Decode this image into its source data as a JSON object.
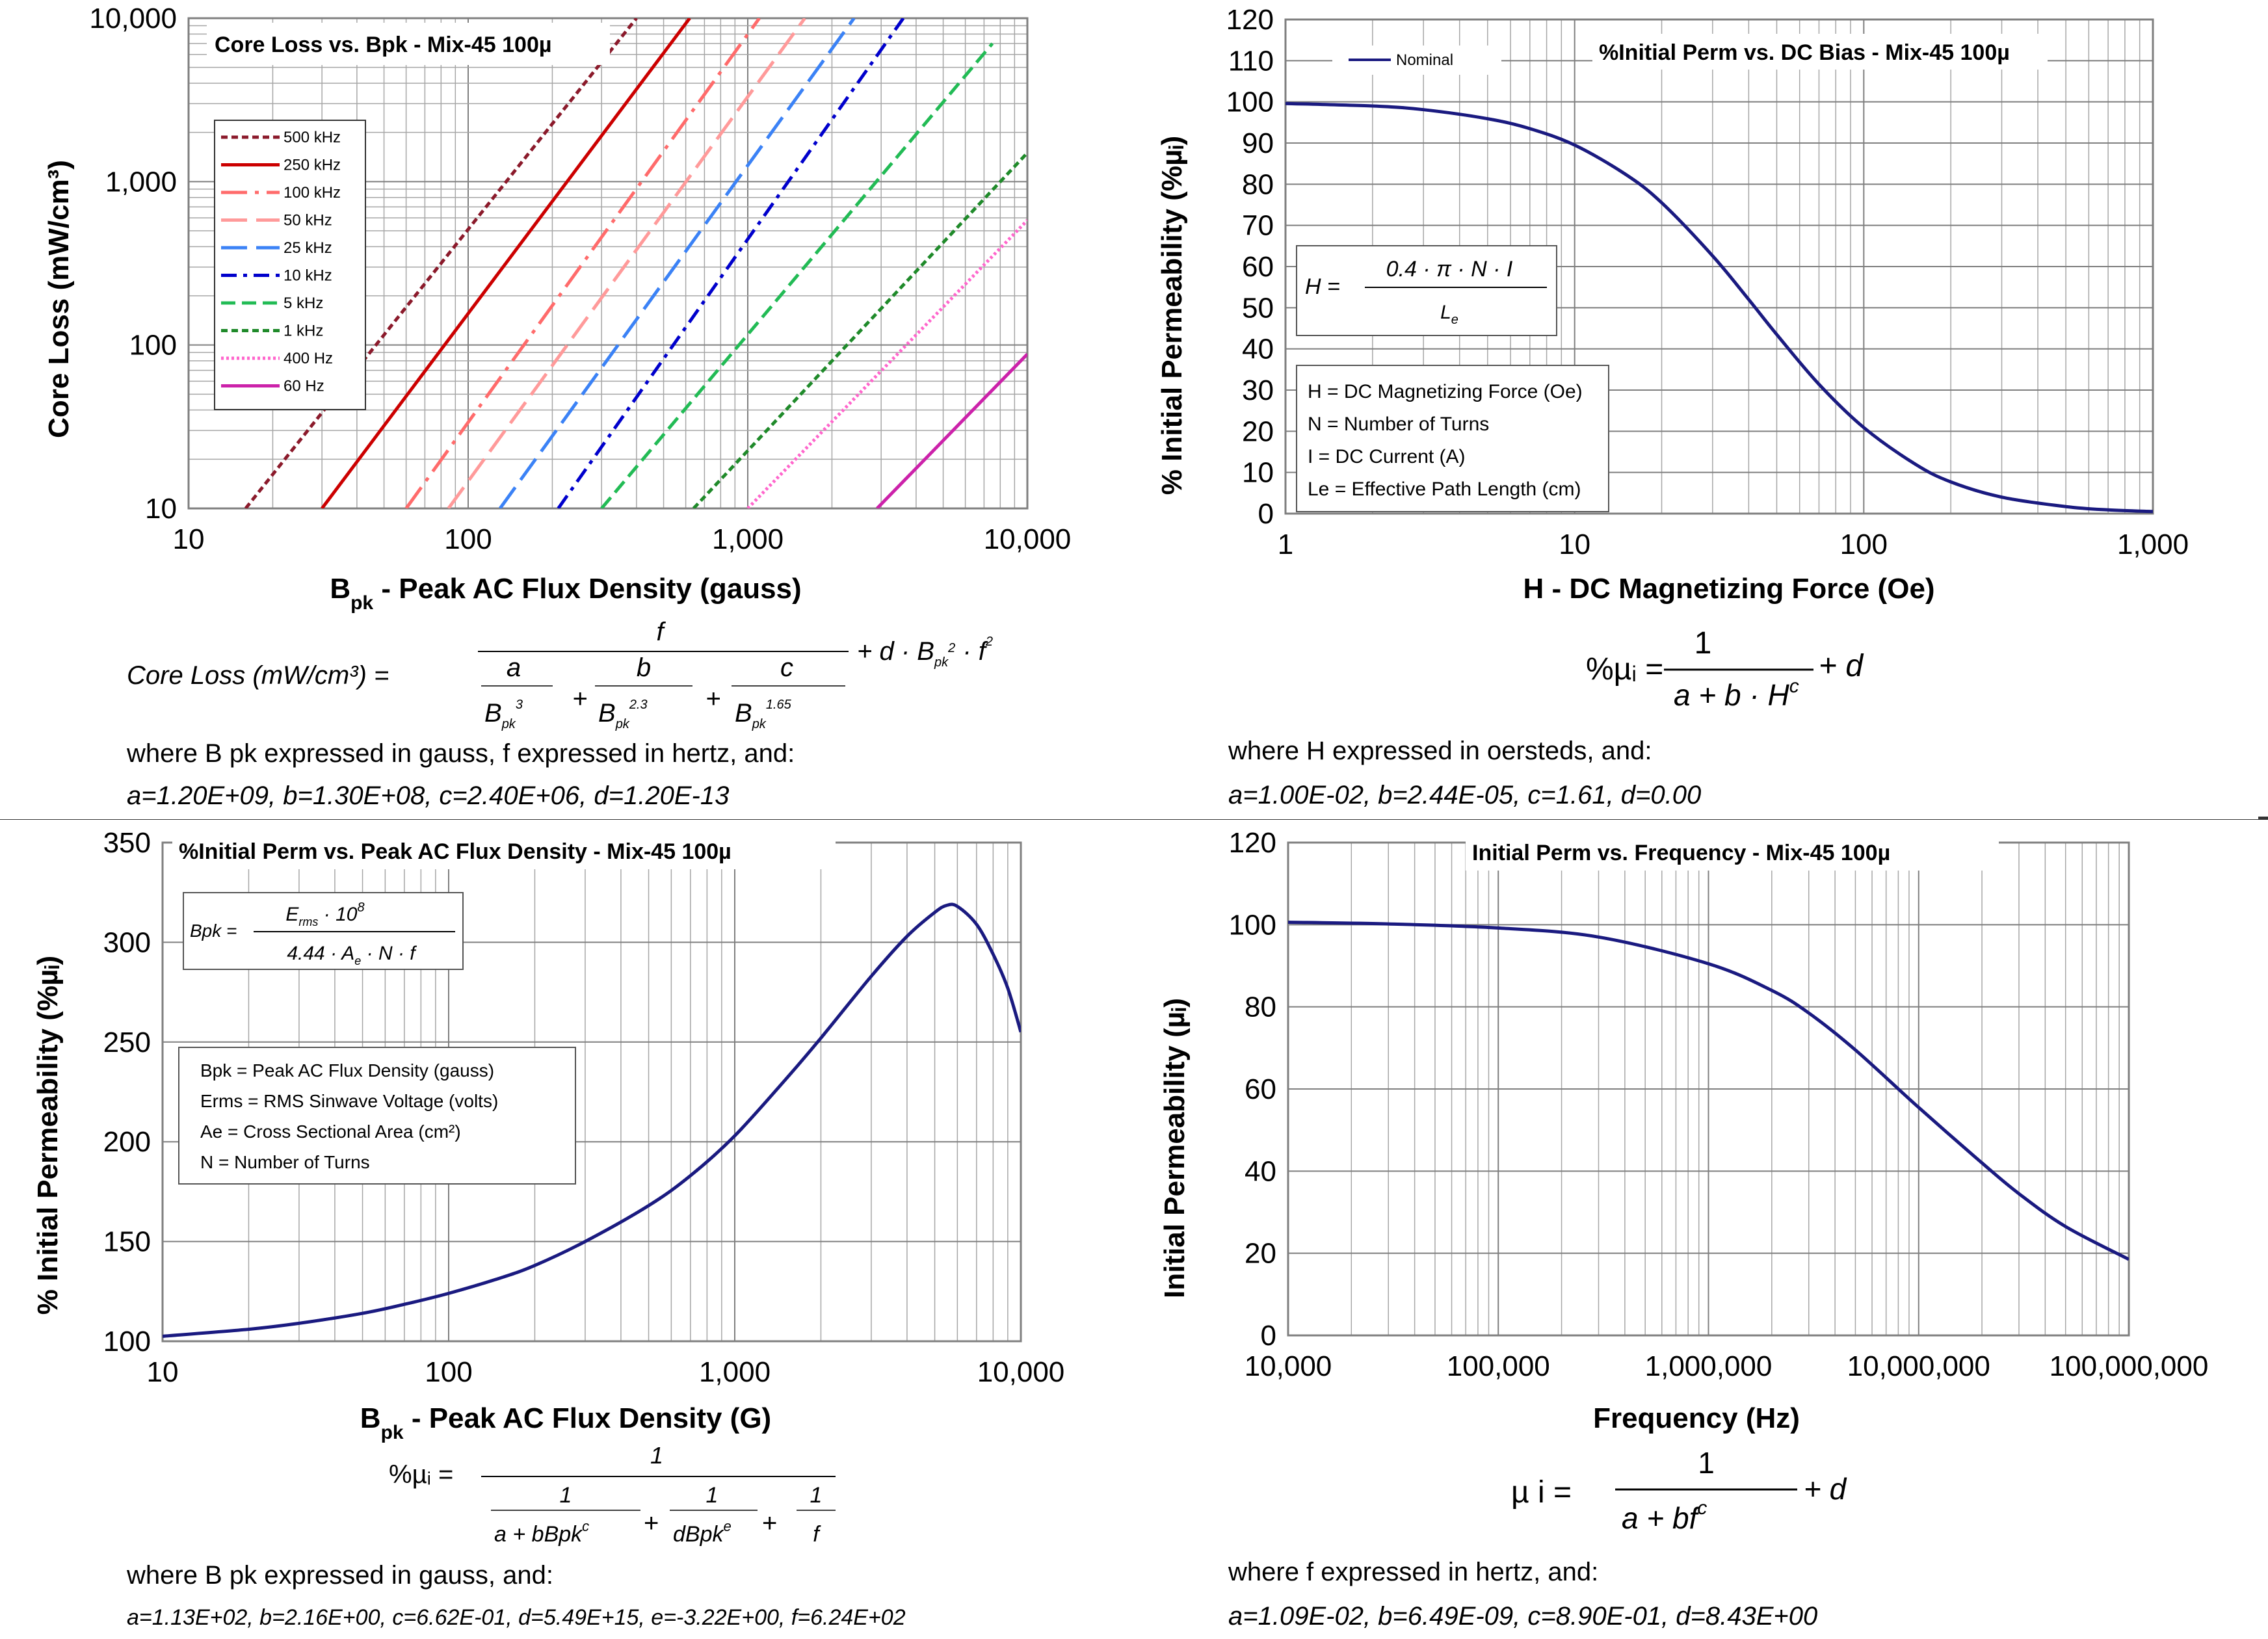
{
  "chart_data": [
    {
      "type": "line",
      "id": "core_loss",
      "title": "Core Loss vs. Bpk - Mix-45  100µ",
      "xlabel": "B",
      "xlabel_sub": "pk",
      "xlabel_rest": " - Peak AC Flux Density (gauss)",
      "ylabel": "Core Loss (mW/cm³)",
      "xscale": "log",
      "yscale": "log",
      "xlim": [
        10,
        10000
      ],
      "ylim": [
        10,
        10000
      ],
      "xticks": [
        10,
        100,
        1000,
        10000
      ],
      "xtick_labels": [
        "10",
        "100",
        "1,000",
        "10,000"
      ],
      "yticks": [
        10,
        100,
        1000,
        10000
      ],
      "ytick_labels": [
        "10",
        "100",
        "1,000",
        "10,000"
      ],
      "grid": true,
      "legend_position": "top-left",
      "series": [
        {
          "name": "500 kHz",
          "color": "#8b1a2b",
          "dash": "10,6",
          "x": [
            16,
            400
          ],
          "y": [
            10,
            10000
          ]
        },
        {
          "name": "250 kHz",
          "color": "#cc0000",
          "dash": "",
          "x": [
            30,
            620
          ],
          "y": [
            10,
            10000
          ]
        },
        {
          "name": "100 kHz",
          "color": "#ff6b6b",
          "dash": "40,12,6,12",
          "x": [
            60,
            1100
          ],
          "y": [
            10,
            10000
          ]
        },
        {
          "name": "50 kHz",
          "color": "#ff9a9a",
          "dash": "40,14",
          "x": [
            85,
            1600
          ],
          "y": [
            10,
            10000
          ]
        },
        {
          "name": "25 kHz",
          "color": "#3b82f6",
          "dash": "40,14",
          "x": [
            130,
            2400
          ],
          "y": [
            10,
            10000
          ]
        },
        {
          "name": "10 kHz",
          "color": "#0000cc",
          "dash": "24,10,6,10",
          "x": [
            210,
            3600
          ],
          "y": [
            10,
            10000
          ]
        },
        {
          "name": "5 kHz",
          "color": "#22bb55",
          "dash": "22,10",
          "x": [
            300,
            7500
          ],
          "y": [
            10,
            7000
          ]
        },
        {
          "name": "1 kHz",
          "color": "#1f8a2a",
          "dash": "10,6",
          "x": [
            640,
            10000
          ],
          "y": [
            10,
            1500
          ]
        },
        {
          "name": "400 Hz",
          "color": "#ff66cc",
          "dash": "4,4",
          "x": [
            1000,
            10000
          ],
          "y": [
            10,
            580
          ]
        },
        {
          "name": "60 Hz",
          "color": "#cc22aa",
          "dash": "",
          "x": [
            2900,
            10000
          ],
          "y": [
            10,
            88
          ]
        }
      ]
    },
    {
      "type": "line",
      "id": "perm_vs_dc_bias",
      "title": "%Initial Perm vs. DC Bias - Mix-45  100µ",
      "xlabel": "H - DC Magnetizing Force (Oe)",
      "ylabel": "% Initial Permeability (%µᵢ)",
      "xscale": "log",
      "yscale": "linear",
      "xlim": [
        1,
        1000
      ],
      "ylim": [
        0,
        120
      ],
      "xticks": [
        1,
        10,
        100,
        1000
      ],
      "xtick_labels": [
        "1",
        "10",
        "100",
        "1,000"
      ],
      "yticks": [
        0,
        10,
        20,
        30,
        40,
        50,
        60,
        70,
        80,
        90,
        100,
        110,
        120
      ],
      "grid": true,
      "legend_position": "top-left",
      "series": [
        {
          "name": "Nominal",
          "color": "#1a1a80",
          "x": [
            1,
            2,
            3,
            5,
            7,
            10,
            15,
            20,
            30,
            40,
            50,
            70,
            100,
            150,
            200,
            300,
            500,
            700,
            1000
          ],
          "y": [
            99.6,
            99.0,
            98.1,
            95.9,
            93.5,
            89.5,
            82.4,
            75.5,
            62.6,
            52.0,
            43.5,
            31.4,
            20.9,
            12.1,
            7.7,
            4.0,
            1.7,
            0.9,
            0.5
          ]
        }
      ]
    },
    {
      "type": "line",
      "id": "perm_vs_bpk",
      "title": "%Initial Perm vs. Peak AC Flux Density - Mix-45  100µ",
      "xlabel": "B",
      "xlabel_sub": "pk",
      "xlabel_rest": " - Peak AC Flux Density (G)",
      "ylabel": "% Initial Permeability (%µᵢ)",
      "xscale": "log",
      "yscale": "linear",
      "xlim": [
        10,
        10000
      ],
      "ylim": [
        100,
        350
      ],
      "xticks": [
        10,
        100,
        1000,
        10000
      ],
      "xtick_labels": [
        "10",
        "100",
        "1,000",
        "10,000"
      ],
      "yticks": [
        100,
        150,
        200,
        250,
        300,
        350
      ],
      "grid": true,
      "series": [
        {
          "name": "",
          "color": "#1a1a80",
          "x": [
            10,
            20,
            30,
            50,
            70,
            100,
            150,
            200,
            300,
            500,
            700,
            1000,
            1500,
            2000,
            3000,
            4000,
            5000,
            5500,
            6000,
            7000,
            8000,
            9000,
            10000
          ],
          "y": [
            102.5,
            106,
            109,
            114,
            118.5,
            124,
            131.5,
            138,
            150,
            168,
            183,
            203,
            231,
            252,
            283,
            303,
            315,
            318.5,
            318,
            309,
            294,
            277,
            255
          ]
        }
      ]
    },
    {
      "type": "line",
      "id": "perm_vs_freq",
      "title": "Initial Perm vs. Frequency - Mix-45  100µ",
      "xlabel": "Frequency (Hz)",
      "ylabel": "Initial Permeability (µᵢ)",
      "xscale": "log",
      "yscale": "linear",
      "xlim": [
        10000,
        100000000
      ],
      "ylim": [
        0,
        120
      ],
      "xticks": [
        10000,
        100000,
        1000000,
        10000000,
        100000000
      ],
      "xtick_labels": [
        "10,000",
        "100,000",
        "1,000,000",
        "10,000,000",
        "100,000,000"
      ],
      "yticks": [
        0,
        20,
        40,
        60,
        80,
        100,
        120
      ],
      "grid": true,
      "series": [
        {
          "name": "",
          "color": "#1a1a80",
          "x": [
            10000,
            30000,
            100000,
            300000,
            1000000,
            2000000,
            3000000,
            5000000,
            10000000,
            20000000,
            30000000,
            50000000,
            100000000
          ],
          "y": [
            100.6,
            100.2,
            99.2,
            97,
            90.5,
            84,
            78.5,
            69.5,
            55.5,
            42,
            34.5,
            26.5,
            18.5
          ]
        }
      ]
    }
  ],
  "panels": {
    "core_loss": {
      "formula_lhs": "Core Loss (mW/cm³)  =",
      "formula_num": "f",
      "frac_a": "a",
      "frac_b": "b",
      "frac_c": "c",
      "den_a": "B",
      "den_a_sub": "pk",
      "den_a_exp": "3",
      "den_b": "B",
      "den_b_sub": "pk",
      "den_b_exp": "2.3",
      "den_c": "B",
      "den_c_sub": "pk",
      "den_c_exp": "1.65",
      "formula_tail": "+ d · B",
      "formula_tail_sub": "pk",
      "formula_tail_exp": "2",
      "formula_tail2": " · f",
      "formula_tail2_exp": "2",
      "where_line": "where B pk expressed in gauss, f expressed in hertz, and:",
      "coeffs": "a=1.20E+09,  b=1.30E+08,  c=2.40E+06,  d=1.20E-13"
    },
    "dc_bias": {
      "box_formula_lhs": "H =",
      "box_formula_num": "0.4 · π · N · I",
      "box_formula_den": "L",
      "box_formula_den_sub": "e",
      "defs": [
        "H = DC Magnetizing Force (Oe)",
        "N = Number of Turns",
        "I = DC Current (A)",
        "Le = Effective Path Length (cm)"
      ],
      "formula_lhs": "%µᵢ =",
      "formula_num": "1",
      "formula_den": "a + b · H",
      "formula_den_exp": "c",
      "formula_tail": "+ d",
      "where_line": "where H  expressed in oersteds, and:",
      "coeffs": "a=1.00E-02,  b=2.44E-05,  c=1.61,  d=0.00"
    },
    "bpk": {
      "box_formula_lhs": "Bpk =",
      "box_formula_num": "E",
      "box_formula_num_sub": "rms",
      "box_formula_num_rest": " · 10",
      "box_formula_num_exp": "8",
      "box_formula_den": "4.44 · A",
      "box_formula_den_sub": "e",
      "box_formula_den_rest": " · N · f",
      "defs": [
        "Bpk = Peak AC Flux Density (gauss)",
        "Erms = RMS Sinwave Voltage (volts)",
        "Ae = Cross Sectional Area (cm²)",
        "N = Number of Turns"
      ],
      "formula_lhs": "%µᵢ =",
      "formula_one": "1",
      "t1_num": "1",
      "t1_den": "a + bBpk",
      "t1_den_exp": "c",
      "t2_num": "1",
      "t2_den": "dBpk",
      "t2_den_exp": "e",
      "t3_num": "1",
      "t3_den": "f",
      "plus": "+",
      "where_line": "where B pk  expressed in gauss, and:",
      "coeffs": "a=1.13E+02, b=2.16E+00, c=6.62E-01, d=5.49E+15, e=-3.22E+00, f=6.24E+02"
    },
    "freq": {
      "formula_lhs": "µ i  =",
      "formula_num": "1",
      "formula_den": "a  +  bf",
      "formula_den_exp": "c",
      "formula_tail": "+  d",
      "where_line": "where f  expressed in hertz, and:",
      "coeffs": "a=1.09E-02,  b=6.49E-09,  c=8.90E-01,   d=8.43E+00"
    }
  }
}
